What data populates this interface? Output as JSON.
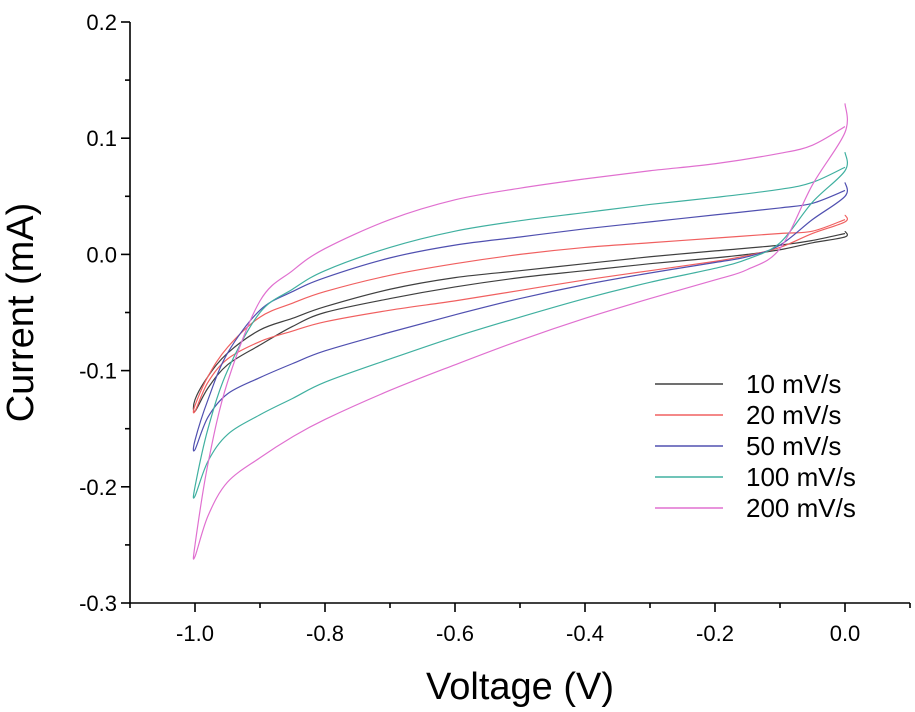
{
  "chart_data": {
    "type": "line",
    "title": "",
    "xlabel": "Voltage (V)",
    "ylabel": "Current (mA)",
    "xlim": [
      -1.1,
      0.1
    ],
    "ylim": [
      -0.3,
      0.2
    ],
    "x_ticks": [
      -1.0,
      -0.8,
      -0.6,
      -0.4,
      -0.2,
      0.0
    ],
    "x_tick_labels": [
      "-1.0",
      "-0.8",
      "-0.6",
      "-0.4",
      "-0.2",
      "0.0"
    ],
    "y_ticks": [
      -0.3,
      -0.2,
      -0.1,
      0.0,
      0.1,
      0.2
    ],
    "y_tick_labels": [
      "-0.3",
      "-0.2",
      "-0.1",
      "0.0",
      "0.1",
      "0.2"
    ],
    "grid": false,
    "legend_position": "bottom-right",
    "series": [
      {
        "name": "10 mV/s",
        "color": "#404040",
        "x": [
          0.0,
          -0.05,
          -0.1,
          -0.2,
          -0.3,
          -0.4,
          -0.5,
          -0.6,
          -0.7,
          -0.8,
          -0.85,
          -0.9,
          -0.95,
          -0.98,
          -1.0,
          -1.0,
          -0.98,
          -0.95,
          -0.9,
          -0.85,
          -0.8,
          -0.7,
          -0.6,
          -0.5,
          -0.4,
          -0.3,
          -0.2,
          -0.15,
          -0.1,
          -0.05,
          0.0,
          0.0
        ],
        "y": [
          0.018,
          0.012,
          0.008,
          0.003,
          -0.002,
          -0.008,
          -0.014,
          -0.02,
          -0.03,
          -0.045,
          -0.055,
          -0.065,
          -0.085,
          -0.105,
          -0.125,
          -0.135,
          -0.115,
          -0.095,
          -0.078,
          -0.062,
          -0.05,
          -0.038,
          -0.028,
          -0.02,
          -0.014,
          -0.008,
          -0.003,
          0.0,
          0.004,
          0.01,
          0.015,
          0.02
        ]
      },
      {
        "name": "20 mV/s",
        "color": "#f06060",
        "x": [
          0.0,
          -0.05,
          -0.1,
          -0.2,
          -0.3,
          -0.4,
          -0.5,
          -0.6,
          -0.7,
          -0.8,
          -0.85,
          -0.9,
          -0.95,
          -0.98,
          -1.0,
          -1.0,
          -0.98,
          -0.95,
          -0.9,
          -0.85,
          -0.8,
          -0.7,
          -0.6,
          -0.5,
          -0.4,
          -0.3,
          -0.2,
          -0.15,
          -0.1,
          -0.05,
          0.0,
          0.0
        ],
        "y": [
          0.03,
          0.02,
          0.018,
          0.014,
          0.01,
          0.006,
          0.0,
          -0.008,
          -0.018,
          -0.032,
          -0.042,
          -0.054,
          -0.08,
          -0.105,
          -0.13,
          -0.135,
          -0.11,
          -0.09,
          -0.075,
          -0.066,
          -0.058,
          -0.048,
          -0.04,
          -0.031,
          -0.022,
          -0.014,
          -0.006,
          -0.001,
          0.006,
          0.018,
          0.028,
          0.034
        ]
      },
      {
        "name": "50 mV/s",
        "color": "#5050b0",
        "x": [
          0.0,
          -0.05,
          -0.1,
          -0.2,
          -0.3,
          -0.4,
          -0.5,
          -0.6,
          -0.7,
          -0.8,
          -0.85,
          -0.9,
          -0.95,
          -0.98,
          -1.0,
          -1.0,
          -0.98,
          -0.95,
          -0.9,
          -0.85,
          -0.8,
          -0.7,
          -0.6,
          -0.5,
          -0.4,
          -0.3,
          -0.2,
          -0.15,
          -0.1,
          -0.05,
          0.0,
          0.0
        ],
        "y": [
          0.055,
          0.044,
          0.04,
          0.034,
          0.028,
          0.022,
          0.015,
          0.008,
          -0.003,
          -0.02,
          -0.032,
          -0.048,
          -0.085,
          -0.125,
          -0.16,
          -0.168,
          -0.14,
          -0.12,
          -0.106,
          -0.094,
          -0.083,
          -0.067,
          -0.052,
          -0.038,
          -0.026,
          -0.016,
          -0.007,
          -0.002,
          0.008,
          0.03,
          0.05,
          0.062
        ]
      },
      {
        "name": "100 mV/s",
        "color": "#40b0a0",
        "x": [
          0.0,
          -0.05,
          -0.1,
          -0.2,
          -0.3,
          -0.4,
          -0.5,
          -0.6,
          -0.7,
          -0.8,
          -0.85,
          -0.9,
          -0.95,
          -0.98,
          -1.0,
          -1.0,
          -0.98,
          -0.95,
          -0.9,
          -0.85,
          -0.8,
          -0.7,
          -0.6,
          -0.5,
          -0.4,
          -0.3,
          -0.2,
          -0.15,
          -0.1,
          -0.05,
          0.0,
          0.0
        ],
        "y": [
          0.075,
          0.062,
          0.056,
          0.049,
          0.043,
          0.036,
          0.029,
          0.02,
          0.006,
          -0.014,
          -0.03,
          -0.05,
          -0.1,
          -0.15,
          -0.2,
          -0.208,
          -0.178,
          -0.155,
          -0.138,
          -0.124,
          -0.11,
          -0.09,
          -0.071,
          -0.054,
          -0.038,
          -0.024,
          -0.012,
          -0.004,
          0.01,
          0.045,
          0.072,
          0.088
        ]
      },
      {
        "name": "200 mV/s",
        "color": "#e070d0",
        "x": [
          0.0,
          -0.05,
          -0.1,
          -0.2,
          -0.3,
          -0.4,
          -0.5,
          -0.6,
          -0.7,
          -0.8,
          -0.85,
          -0.9,
          -0.95,
          -0.98,
          -1.0,
          -1.0,
          -0.98,
          -0.95,
          -0.9,
          -0.85,
          -0.8,
          -0.7,
          -0.6,
          -0.5,
          -0.4,
          -0.3,
          -0.2,
          -0.15,
          -0.1,
          -0.05,
          0.0,
          0.0
        ],
        "y": [
          0.11,
          0.094,
          0.087,
          0.078,
          0.072,
          0.065,
          0.057,
          0.047,
          0.03,
          0.005,
          -0.014,
          -0.04,
          -0.11,
          -0.18,
          -0.25,
          -0.26,
          -0.225,
          -0.196,
          -0.175,
          -0.157,
          -0.142,
          -0.117,
          -0.095,
          -0.074,
          -0.055,
          -0.038,
          -0.022,
          -0.013,
          0.005,
          0.06,
          0.105,
          0.13
        ]
      }
    ]
  }
}
